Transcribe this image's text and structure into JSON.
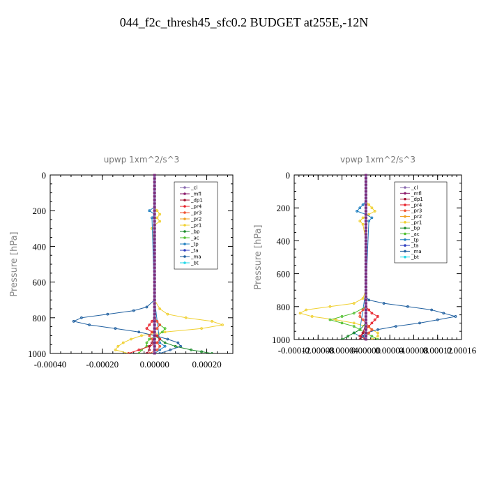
{
  "figure": {
    "title": "044_f2c_thresh45_sfc0.2  BUDGET at255E,-12N"
  },
  "legend_colors": {
    "_cl": "#8a6ab0",
    "_mfl": "#8b1a6b",
    "_dp1": "#a01030",
    "_pr4": "#e8202a",
    "_pr3": "#f05030",
    "_pr2": "#f0a020",
    "_pr1": "#f0d030",
    "_bp": "#1a8a2a",
    "_ac": "#50c030",
    "_tp": "#2080c0",
    "_ta": "#3040c0",
    "_ma": "#2060a0",
    "_bt": "#20d8e8"
  },
  "chart_data": [
    {
      "type": "line",
      "title": "upwp   1xm^2/s^3",
      "ylabel": "Pressure  [hPa]",
      "xlabel": "",
      "xlim": [
        -0.0004,
        0.0003
      ],
      "ylim": [
        1000,
        0
      ],
      "xticks": [
        -0.0004,
        -0.0002,
        0,
        0.0002
      ],
      "xtick_labels": [
        "-0.00040",
        "-0.00020",
        "0.00000",
        "0.00020"
      ],
      "yticks": [
        0,
        200,
        400,
        600,
        800,
        1000
      ],
      "ytick_labels": [
        "0",
        "200",
        "400",
        "600",
        "800",
        "1000"
      ],
      "legend": [
        "_cl",
        "_mfl",
        "_dp1",
        "_pr4",
        "_pr3",
        "_pr2",
        "_pr1",
        "_bp",
        "_ac",
        "_tp",
        "_ta",
        "_ma",
        "_bt"
      ],
      "legend_position": "top-right",
      "series": [
        {
          "name": "_pr1",
          "y": [
            0,
            180,
            200,
            220,
            240,
            260,
            280,
            300,
            400,
            700,
            750,
            780,
            800,
            820,
            840,
            860,
            880,
            900,
            920,
            940,
            960,
            980,
            1000
          ],
          "values": [
            0,
            0,
            1e-05,
            2e-05,
            1e-05,
            2e-05,
            0,
            -1e-05,
            0,
            0,
            2e-05,
            5e-05,
            0.00012,
            0.00022,
            0.00026,
            0.00018,
            4e-05,
            -5e-05,
            -9e-05,
            -0.00012,
            -0.00014,
            -0.00015,
            -0.0001
          ]
        },
        {
          "name": "_ma",
          "y": [
            0,
            700,
            740,
            760,
            780,
            800,
            820,
            840,
            860,
            880,
            900,
            920,
            940,
            960,
            980,
            1000
          ],
          "values": [
            0,
            0,
            -3e-05,
            -8e-05,
            -0.00018,
            -0.00028,
            -0.00031,
            -0.00025,
            -0.00015,
            -6e-05,
            0,
            5e-05,
            9e-05,
            0.0001,
            6e-05,
            2e-05
          ]
        },
        {
          "name": "_tp",
          "y": [
            0,
            180,
            200,
            220,
            240,
            700,
            940,
            960,
            980,
            1000
          ],
          "values": [
            0,
            0,
            -2e-05,
            0,
            -1e-05,
            0,
            2e-05,
            4e-05,
            2e-05,
            0
          ]
        },
        {
          "name": "_bp",
          "y": [
            0,
            800,
            900,
            920,
            940,
            960,
            980,
            990,
            1000
          ],
          "values": [
            0,
            0,
            0,
            2e-05,
            4e-05,
            8e-05,
            0.00014,
            0.00018,
            0.00022
          ]
        },
        {
          "name": "_ac",
          "y": [
            0,
            800,
            840,
            860,
            880,
            900,
            920,
            940,
            960,
            980,
            1000
          ],
          "values": [
            0,
            0,
            2e-05,
            4e-05,
            3e-05,
            1e-05,
            -2e-05,
            -3e-05,
            -3e-05,
            -5e-05,
            -6e-05
          ]
        },
        {
          "name": "_pr4",
          "y": [
            0,
            800,
            820,
            840,
            860,
            880,
            900,
            920,
            940,
            960,
            980,
            1000
          ],
          "values": [
            0,
            0,
            -1e-05,
            -2e-05,
            -3e-05,
            -1e-05,
            1e-05,
            2e-05,
            1e-05,
            -2e-05,
            -6e-05,
            -0.0001
          ]
        },
        {
          "name": "_pr3",
          "y": [
            0,
            800,
            820,
            840,
            860,
            880,
            900,
            920,
            940,
            960,
            980,
            1000
          ],
          "values": [
            0,
            0,
            1e-05,
            2e-05,
            1e-05,
            -1e-05,
            -2e-05,
            -1e-05,
            1e-05,
            2e-05,
            1e-05,
            -2e-05
          ]
        },
        {
          "name": "_dp1",
          "y": [
            0,
            900,
            940,
            960,
            980,
            1000
          ],
          "values": [
            0,
            0,
            -1e-05,
            -2e-05,
            -2e-05,
            -3e-05
          ]
        },
        {
          "name": "_mfl",
          "y": [
            0,
            1000
          ],
          "values": [
            0,
            0
          ]
        },
        {
          "name": "_cl",
          "y": [
            0,
            1000
          ],
          "values": [
            0,
            0
          ]
        }
      ]
    },
    {
      "type": "line",
      "title": "vpwp   1xm^2/s^3",
      "ylabel": "Pressure  [hPa]",
      "xlabel": "",
      "xlim": [
        -0.00012,
        0.00016
      ],
      "ylim": [
        1000,
        0
      ],
      "xticks": [
        -0.00012,
        -8e-05,
        -4e-05,
        0,
        4e-05,
        8e-05,
        0.00012,
        0.00016
      ],
      "xtick_labels": [
        "-0.00012",
        "-0.00008",
        "-0.00004",
        "0.00000",
        "0.00004",
        "0.00008",
        "0.00012",
        "0.00016"
      ],
      "yticks": [
        0,
        200,
        400,
        600,
        800,
        1000
      ],
      "ytick_labels": [
        "0",
        "200",
        "400",
        "600",
        "800",
        "1000"
      ],
      "legend": [
        "_cl",
        "_mfl",
        "_dp1",
        "_pr4",
        "_pr3",
        "_pr2",
        "_pr1",
        "_bp",
        "_ac",
        "_tp",
        "_ta",
        "_ma",
        "_bt"
      ],
      "legend_position": "top-right",
      "series": [
        {
          "name": "_pr1",
          "y": [
            0,
            160,
            180,
            200,
            220,
            240,
            260,
            280,
            300,
            400,
            700,
            750,
            780,
            800,
            820,
            840,
            860,
            880,
            900,
            920,
            940,
            960,
            980,
            1000
          ],
          "values": [
            0,
            0,
            5e-06,
            1e-05,
            1.5e-05,
            5e-06,
            -5e-06,
            -1e-05,
            -5e-06,
            0,
            0,
            -5e-06,
            -2e-05,
            -6e-05,
            -0.0001,
            -0.00011,
            -9e-05,
            -5e-05,
            -2e-05,
            0,
            1e-05,
            2e-05,
            2e-05,
            1e-05
          ]
        },
        {
          "name": "_ma",
          "y": [
            0,
            700,
            740,
            760,
            780,
            800,
            820,
            840,
            860,
            880,
            900,
            920,
            940,
            960,
            980,
            1000
          ],
          "values": [
            0,
            0,
            0,
            5e-06,
            3e-05,
            7e-05,
            0.00011,
            0.00013,
            0.00015,
            0.00012,
            9e-05,
            5e-05,
            2e-05,
            0,
            -5e-06,
            0
          ]
        },
        {
          "name": "_tp",
          "y": [
            0,
            160,
            180,
            200,
            220,
            240,
            260,
            280,
            700,
            940,
            960,
            980,
            1000
          ],
          "values": [
            0,
            0,
            -5e-06,
            -1e-05,
            -1.5e-05,
            0,
            1e-05,
            5e-06,
            0,
            -1e-05,
            -2e-05,
            -1e-05,
            0
          ]
        },
        {
          "name": "_bp",
          "y": [
            0,
            900,
            940,
            960,
            980,
            1000
          ],
          "values": [
            0,
            0,
            -1e-05,
            -2e-05,
            -3e-05,
            -4e-05
          ]
        },
        {
          "name": "_ac",
          "y": [
            0,
            800,
            840,
            860,
            880,
            900,
            920,
            940,
            960,
            980,
            1000
          ],
          "values": [
            0,
            0,
            -2e-05,
            -4e-05,
            -6e-05,
            -4e-05,
            -2e-05,
            -1e-05,
            0,
            1e-05,
            2e-05
          ]
        },
        {
          "name": "_pr4",
          "y": [
            0,
            800,
            820,
            840,
            860,
            880,
            900,
            920,
            940,
            960,
            980,
            1000
          ],
          "values": [
            0,
            0,
            5e-06,
            1e-05,
            2e-05,
            1.5e-05,
            1e-05,
            5e-06,
            0,
            -5e-06,
            -1e-05,
            0
          ]
        },
        {
          "name": "_pr3",
          "y": [
            0,
            800,
            820,
            840,
            860,
            880,
            900,
            920,
            940,
            960,
            980,
            1000
          ],
          "values": [
            0,
            0,
            -5e-06,
            -1e-05,
            -1e-05,
            -5e-06,
            0,
            5e-06,
            1e-05,
            5e-06,
            0,
            0
          ]
        },
        {
          "name": "_dp1",
          "y": [
            0,
            900,
            960,
            1000
          ],
          "values": [
            0,
            0,
            -5e-06,
            -1e-05
          ]
        },
        {
          "name": "_mfl",
          "y": [
            0,
            1000
          ],
          "values": [
            0,
            0
          ]
        },
        {
          "name": "_cl",
          "y": [
            0,
            1000
          ],
          "values": [
            0,
            0
          ]
        }
      ]
    }
  ]
}
